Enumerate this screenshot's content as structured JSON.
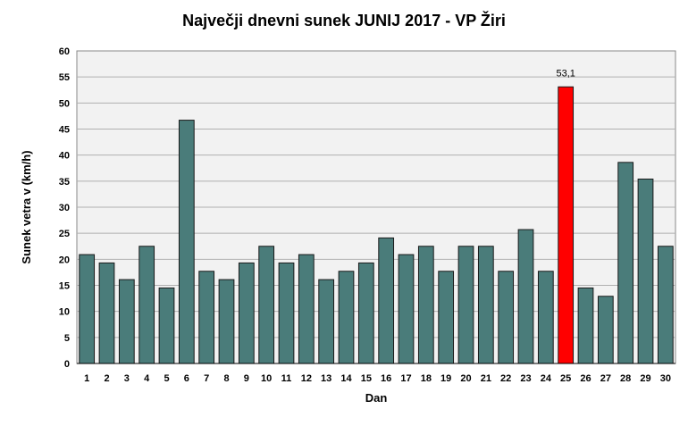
{
  "chart_data": {
    "type": "bar",
    "title": "Največji dnevni sunek JUNIJ 2017 - VP Žiri",
    "xlabel": "Dan",
    "ylabel": "Sunek vetra v (km/h)",
    "ylim": [
      0,
      60
    ],
    "yticks": [
      0,
      5,
      10,
      15,
      20,
      25,
      30,
      35,
      40,
      45,
      50,
      55,
      60
    ],
    "grid": "horizontal",
    "categories": [
      "1",
      "2",
      "3",
      "4",
      "5",
      "6",
      "7",
      "8",
      "9",
      "10",
      "11",
      "12",
      "13",
      "14",
      "15",
      "16",
      "17",
      "18",
      "19",
      "20",
      "21",
      "22",
      "23",
      "24",
      "25",
      "26",
      "27",
      "28",
      "29",
      "30"
    ],
    "values": [
      20.9,
      19.3,
      16.1,
      22.5,
      14.5,
      46.7,
      17.7,
      16.1,
      19.3,
      22.5,
      19.3,
      20.9,
      16.1,
      17.7,
      19.3,
      24.1,
      20.9,
      22.5,
      17.7,
      22.5,
      22.5,
      17.7,
      25.7,
      17.7,
      53.1,
      14.5,
      12.9,
      38.6,
      35.4,
      22.5
    ],
    "highlight_index": 24,
    "highlight_label": "53,1",
    "colors": {
      "bar": "#4a7c7a",
      "highlight": "#ff0000",
      "plot_bg": "#f2f2f2",
      "grid": "#b0b0b0"
    }
  }
}
